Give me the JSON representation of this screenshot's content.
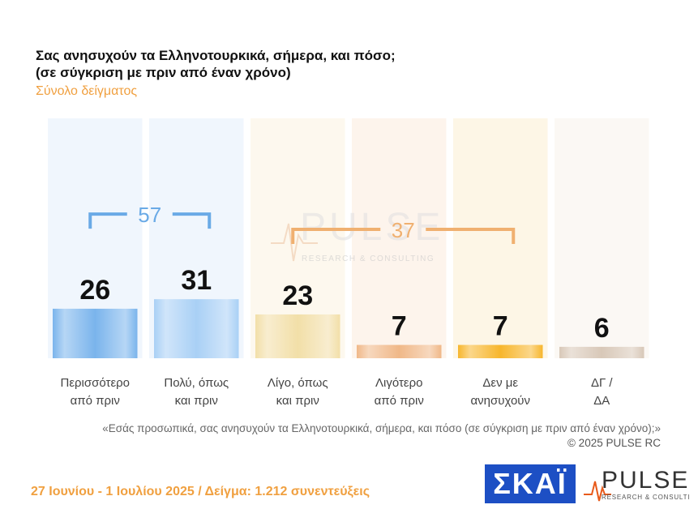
{
  "header": {
    "title_line1": "Σας ανησυχούν τα Ελληνοτουρκικά, σήμερα, και πόσο;",
    "title_line2": "(σε σύγκριση με πριν από έναν χρόνο)",
    "subtitle": "Σύνολο δείγματος"
  },
  "chart_data": {
    "type": "bar",
    "categories": [
      [
        "Περισσότερο",
        "από πριν"
      ],
      [
        "Πολύ, όπως",
        "και πριν"
      ],
      [
        "Λίγο, όπως",
        "και πριν"
      ],
      [
        "Λιγότερο",
        "από πριν"
      ],
      [
        "Δεν με",
        "ανησυχούν"
      ],
      [
        "ΔΓ /",
        "ΔΑ"
      ]
    ],
    "values": [
      26,
      31,
      23,
      7,
      7,
      6
    ],
    "value_labels": [
      "26",
      "31",
      "23",
      "7",
      "7",
      "6"
    ],
    "ylim": [
      0,
      100
    ],
    "bar_colors": [
      "#7ab4ec",
      "#a9d0f5",
      "#f2dfa8",
      "#f0b888",
      "#f7b62c",
      "#d8c8b8"
    ],
    "column_bg_colors": [
      "#f0f6fd",
      "#f0f6fd",
      "#fdf8ee",
      "#fdf4ec",
      "#fdf6e6",
      "#fbf8f4"
    ],
    "brackets": [
      {
        "label": "57",
        "from": 0,
        "to": 1,
        "color": "#6aaae6"
      },
      {
        "label": "37",
        "from": 2,
        "to": 4,
        "color": "#f0b070"
      }
    ]
  },
  "watermark": {
    "brand": "PULSE",
    "tagline": "RESEARCH & CONSULTING"
  },
  "footer": {
    "question_note": "«Εσάς προσωπικά, σας ανησυχούν τα Ελληνοτουρκικά, σήμερα, και πόσο (σε σύγκριση με πριν από έναν χρόνο);»",
    "copyright": "©  2025  PULSE RC",
    "fieldwork": "27 Ιουνίου - 1 Ιουλίου 2025  /  Δείγμα:  1.212 συνεντεύξεις"
  },
  "logos": {
    "skai": "ΣΚΑΪ",
    "pulse": "PULSE",
    "pulse_tagline": "RESEARCH & CONSULTING"
  },
  "icons": {
    "watermark": "pulse-wave-icon"
  }
}
